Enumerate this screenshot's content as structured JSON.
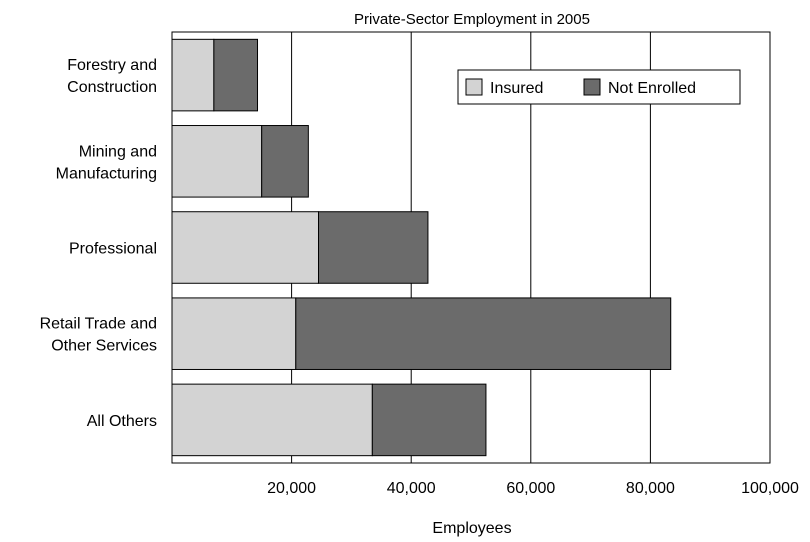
{
  "chart_data": {
    "type": "bar",
    "orientation": "horizontal",
    "stacked": true,
    "title": "Private-Sector Employment in 2005",
    "xlabel": "Employees",
    "ylabel": "",
    "xlim": [
      0,
      100000
    ],
    "xticks": [
      20000,
      40000,
      60000,
      80000,
      100000
    ],
    "xtick_labels": [
      "20,000",
      "40,000",
      "60,000",
      "80,000",
      "100,000"
    ],
    "grid": "vertical",
    "legend_position": "top-right",
    "categories": [
      [
        "Forestry and",
        "Construction"
      ],
      [
        "Mining and",
        "Manufacturing"
      ],
      [
        "Professional"
      ],
      [
        "Retail Trade and",
        "Other Services"
      ],
      [
        "All Others"
      ]
    ],
    "series": [
      {
        "name": "Insured",
        "color": "#d3d3d3",
        "values": [
          7000,
          15000,
          24500,
          20700,
          33500
        ]
      },
      {
        "name": "Not Enrolled",
        "color": "#6b6b6b",
        "values": [
          7300,
          7800,
          18300,
          62700,
          19000
        ]
      }
    ]
  }
}
